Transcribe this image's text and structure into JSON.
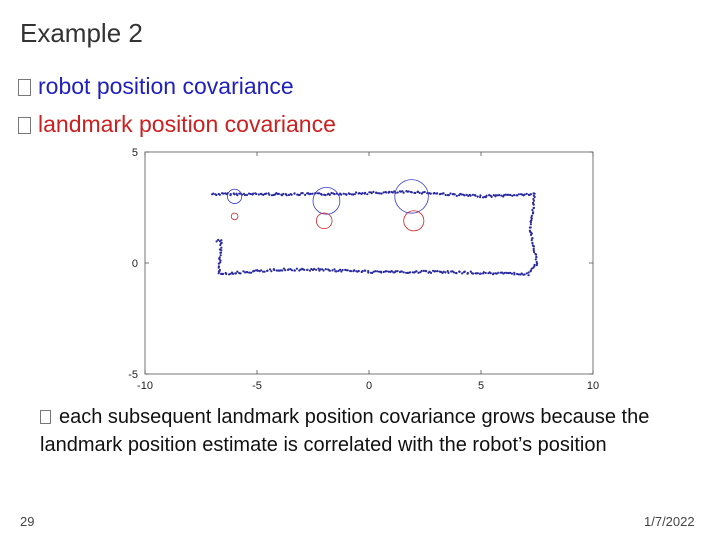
{
  "slide": {
    "title": "Example 2",
    "bullets": [
      {
        "text": "robot position covariance",
        "color": "#1f1fbf"
      },
      {
        "text": "landmark position covariance",
        "color": "#cc1f1f"
      }
    ],
    "sub_bullet": "each subsequent landmark position covariance grows because the landmark position estimate is correlated with the robot’s position",
    "slide_number": "29",
    "date": "1/7/2022"
  },
  "chart_data": {
    "type": "scatter",
    "xlim": [
      -10,
      10
    ],
    "ylim": [
      -5,
      5
    ],
    "x_ticks": [
      -10,
      -5,
      0,
      5,
      10
    ],
    "y_ticks": [
      -5,
      0,
      5
    ],
    "x_tick_labels": [
      "-10",
      "-5",
      "0",
      "5",
      "10"
    ],
    "y_tick_labels": [
      "-5",
      "0",
      "5"
    ],
    "grid": false,
    "trajectory_color": "#2a2aa0",
    "trajectory_path": [
      [
        -7,
        3.1
      ],
      [
        -2,
        3.1
      ],
      [
        2,
        3.2
      ],
      [
        5,
        3.0
      ],
      [
        7.4,
        3.1
      ],
      [
        7.2,
        1.5
      ],
      [
        7.5,
        0
      ],
      [
        7.1,
        -0.5
      ],
      [
        3,
        -0.4
      ],
      [
        0,
        -0.4
      ],
      [
        -2,
        -0.3
      ],
      [
        -4,
        -0.3
      ],
      [
        -6.7,
        -0.5
      ],
      [
        -6.6,
        1.0
      ],
      [
        -6.9,
        1.0
      ]
    ],
    "robot_covariance": {
      "color": "#3a3ad0",
      "ellipses": [
        [
          -6,
          3.0,
          0.32
        ],
        [
          -1.9,
          2.8,
          0.6
        ],
        [
          1.9,
          3.0,
          0.75
        ]
      ]
    },
    "landmark_covariance": {
      "color": "#d02020",
      "ellipses": [
        [
          -6,
          2.1,
          0.15
        ],
        [
          -2,
          1.9,
          0.35
        ],
        [
          2,
          1.9,
          0.45
        ]
      ]
    }
  }
}
